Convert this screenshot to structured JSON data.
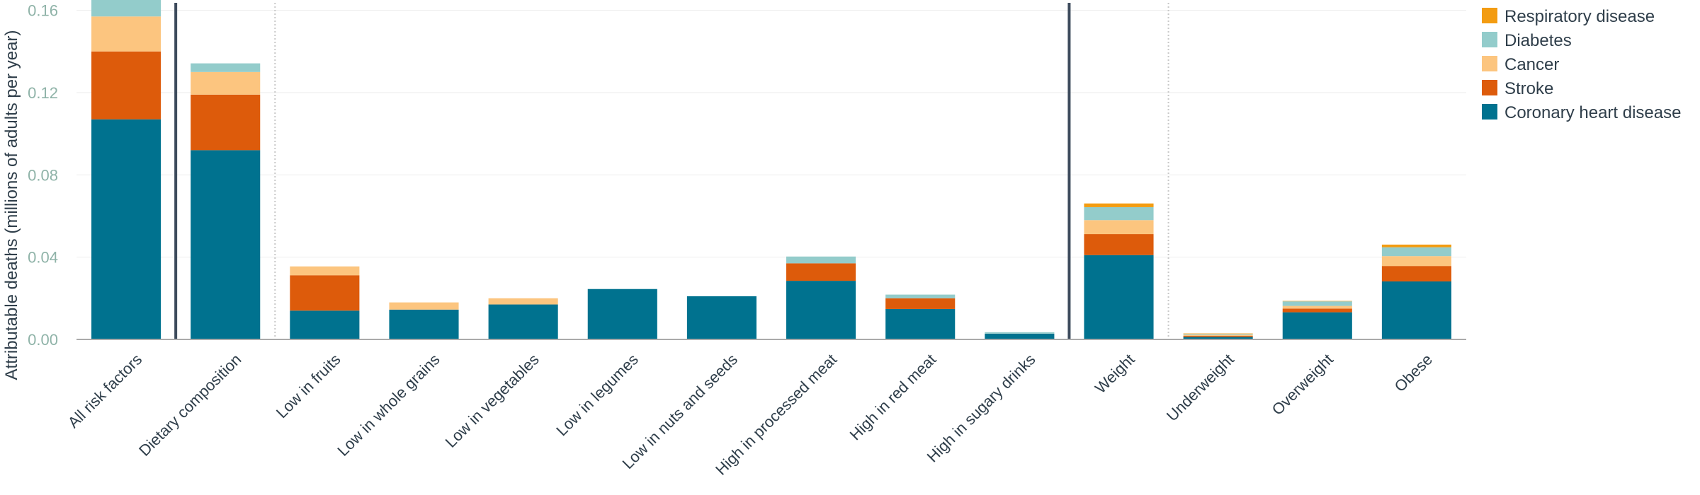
{
  "chart_data": {
    "type": "bar",
    "stacked": true,
    "title": "",
    "xlabel": "",
    "ylabel": "Attributable deaths (millions of adults per year)",
    "ylim": [
      0,
      0.165
    ],
    "yticks": [
      0,
      0.04,
      0.08,
      0.12,
      0.16
    ],
    "ytick_labels": [
      "0.00",
      "0.04",
      "0.08",
      "0.12",
      "0.16"
    ],
    "grid": true,
    "legend_position": "top-right",
    "categories": [
      "All risk factors",
      "Dietary composition",
      "Low in fruits",
      "Low in whole grains",
      "Low in vegetables",
      "Low in legumes",
      "Low in nuts and seeds",
      "High in processed meat",
      "High in red meat",
      "High in sugary drinks",
      "Weight",
      "Underweight",
      "Overweight",
      "Obese"
    ],
    "series": [
      {
        "name": "Coronary heart disease",
        "color": "#00728f",
        "values": [
          0.107,
          0.092,
          0.014,
          0.0145,
          0.017,
          0.0245,
          0.021,
          0.0285,
          0.0148,
          0.0028,
          0.041,
          0.0012,
          0.0132,
          0.0282
        ]
      },
      {
        "name": "Stroke",
        "color": "#dd5b0b",
        "values": [
          0.033,
          0.027,
          0.0172,
          0.0,
          0.0,
          0.0,
          0.0,
          0.0085,
          0.0052,
          0.0,
          0.0102,
          0.0005,
          0.0018,
          0.0075
        ]
      },
      {
        "name": "Cancer",
        "color": "#fcc57f",
        "values": [
          0.017,
          0.011,
          0.0043,
          0.0035,
          0.003,
          0.0,
          0.0,
          0.0,
          0.0,
          0.0,
          0.0068,
          0.0006,
          0.0013,
          0.0048
        ]
      },
      {
        "name": "Diabetes",
        "color": "#93cccb",
        "values": [
          0.0085,
          0.0042,
          0.0,
          0.0,
          0.0,
          0.0,
          0.0,
          0.0033,
          0.0018,
          0.0007,
          0.0063,
          0.0004,
          0.0022,
          0.0043
        ]
      },
      {
        "name": "Respiratory disease",
        "color": "#f39c12",
        "values": [
          0.0017,
          0.0,
          0.0,
          0.0,
          0.0,
          0.0,
          0.0,
          0.0,
          0.0,
          0.0,
          0.0018,
          0.0002,
          0.0002,
          0.0013
        ]
      }
    ],
    "group_separators_after": [
      {
        "after_index": 0,
        "style": "solid"
      },
      {
        "after_index": 1,
        "style": "dotted"
      },
      {
        "after_index": 9,
        "style": "solid"
      },
      {
        "after_index": 10,
        "style": "dotted"
      }
    ],
    "colors": {
      "axis": "#aaaaaa",
      "grid": "#eeeeee",
      "solid_separator": "#3d4b5c",
      "dotted_separator": "#c8c8c8"
    }
  }
}
